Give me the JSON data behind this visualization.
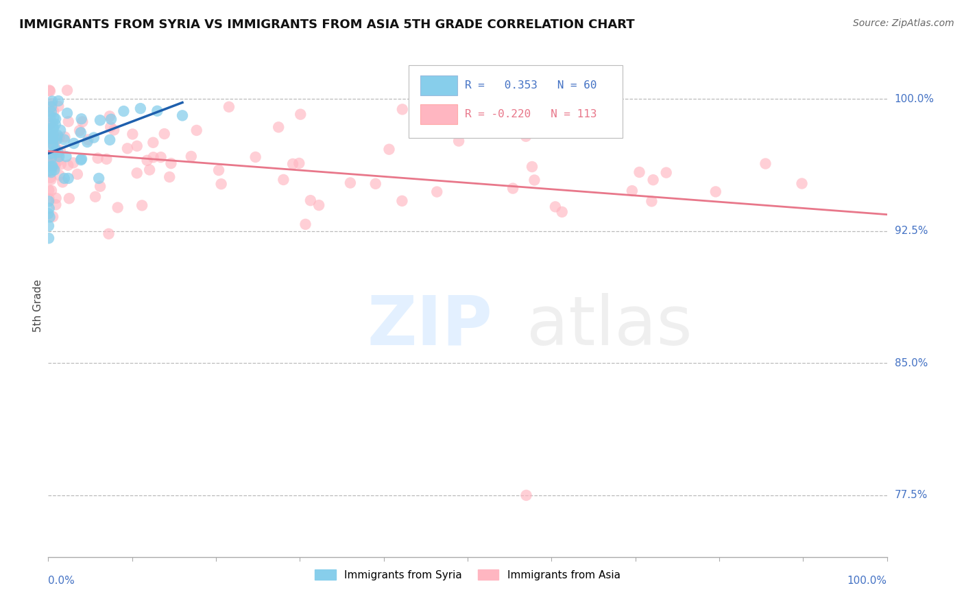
{
  "title": "IMMIGRANTS FROM SYRIA VS IMMIGRANTS FROM ASIA 5TH GRADE CORRELATION CHART",
  "source": "Source: ZipAtlas.com",
  "ylabel": "5th Grade",
  "ytick_labels": [
    "77.5%",
    "85.0%",
    "92.5%",
    "100.0%"
  ],
  "ytick_values": [
    0.775,
    0.85,
    0.925,
    1.0
  ],
  "r_syria": 0.353,
  "n_syria": 60,
  "r_asia": -0.22,
  "n_asia": 113,
  "color_syria": "#87CEEB",
  "color_asia": "#FFB6C1",
  "line_color_syria": "#1E5FAD",
  "line_color_asia": "#E8778A",
  "background_color": "#FFFFFF",
  "xlim": [
    0.0,
    1.0
  ],
  "ylim": [
    0.74,
    1.025
  ]
}
